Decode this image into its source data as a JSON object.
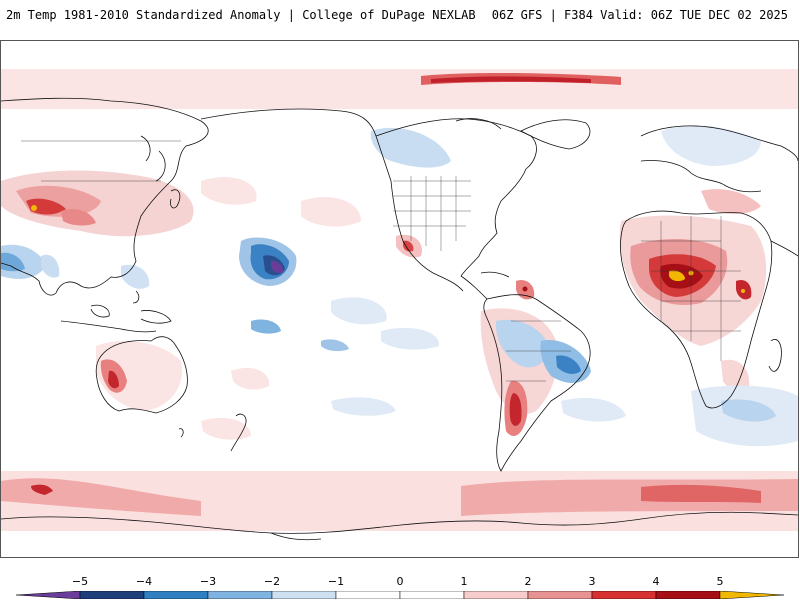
{
  "header": {
    "title_left": "2m Temp 1981-2010 Standardized Anomaly | College of DuPage NEXLAB",
    "title_right": "06Z GFS | F384 Valid: 06Z TUE DEC 02 2025"
  },
  "map": {
    "projection": "cylindrical, Pacific-centered",
    "variable": "2m temperature standardized anomaly",
    "notable_features": [
      "strong warm anomaly over Sahel / West Africa",
      "cold anomaly patch central Pacific",
      "warm anomaly western Australia",
      "warm anomaly Argentina",
      "cool anomaly southern Brazil"
    ]
  },
  "colorbar": {
    "ticks": [
      "−5",
      "−4",
      "−3",
      "−2",
      "−1",
      "0",
      "1",
      "2",
      "3",
      "4",
      "5"
    ],
    "colors": [
      "#6a3d9a",
      "#1f3f7a",
      "#2f7fc1",
      "#7fb3e0",
      "#cde0f2",
      "#ffffff",
      "#ffffff",
      "#f7cccc",
      "#e89393",
      "#d73030",
      "#a50f15",
      "#f2b800"
    ]
  }
}
